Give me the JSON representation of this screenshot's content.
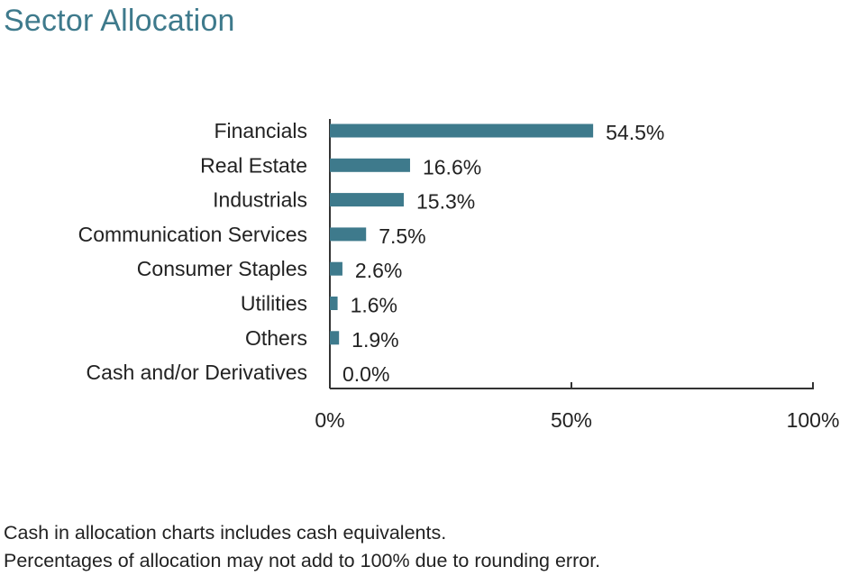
{
  "chart_data": {
    "type": "bar",
    "orientation": "horizontal",
    "title": "Sector Allocation",
    "categories": [
      "Financials",
      "Real Estate",
      "Industrials",
      "Communication Services",
      "Consumer Staples",
      "Utilities",
      "Others",
      "Cash and/or Derivatives"
    ],
    "values": [
      54.5,
      16.6,
      15.3,
      7.5,
      2.6,
      1.6,
      1.9,
      0.0
    ],
    "value_labels": [
      "54.5%",
      "16.6%",
      "15.3%",
      "7.5%",
      "2.6%",
      "1.6%",
      "1.9%",
      "0.0%"
    ],
    "xlim": [
      0,
      100
    ],
    "xticks": [
      0,
      50,
      100
    ],
    "xtick_labels": [
      "0%",
      "50%",
      "100%"
    ],
    "xlabel": "",
    "ylabel": "",
    "grid": false,
    "bar_color": "#3e7a8c"
  },
  "footnotes": [
    "Cash in allocation charts includes cash equivalents.",
    "Percentages of allocation may not add to 100% due to rounding error."
  ]
}
